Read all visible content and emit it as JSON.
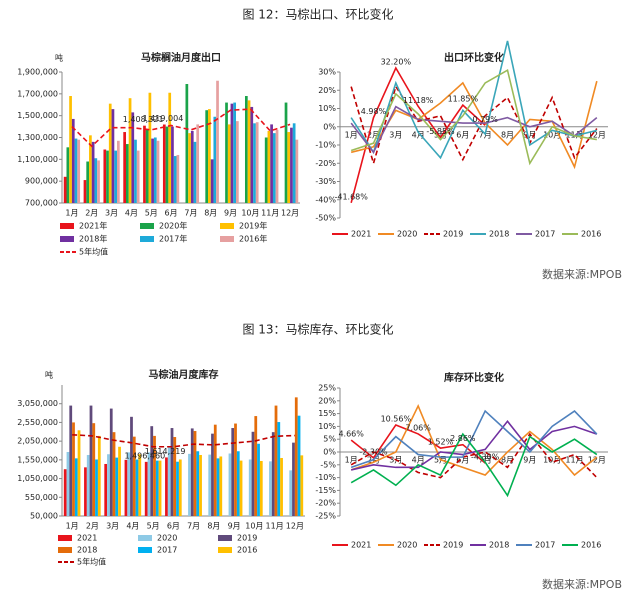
{
  "figures": [
    {
      "caption": "图 12：马棕出口、环比变化",
      "source": "数据来源:MPOB"
    },
    {
      "caption": "图 13：马棕库存、环比变化",
      "source": "数据来源:MPOB"
    }
  ],
  "chart_data": [
    {
      "type": "bar",
      "title": "马棕榈油月度出口",
      "unit": "吨",
      "categories": [
        "1月",
        "2月",
        "3月",
        "4月",
        "5月",
        "6月",
        "7月",
        "8月",
        "9月",
        "10月",
        "11月",
        "12月"
      ],
      "ylim": [
        700000,
        1900000
      ],
      "yticks": [
        {
          "value": 700000,
          "label": "700,000"
        },
        {
          "value": 900000,
          "label": "900,000"
        },
        {
          "value": 1100000,
          "label": "1,100,000"
        },
        {
          "value": 1300000,
          "label": "1,300,000"
        },
        {
          "value": 1500000,
          "label": "1,500,000"
        },
        {
          "value": 1700000,
          "label": "1,700,000"
        },
        {
          "value": 1900000,
          "label": "1,900,000"
        }
      ],
      "series": [
        {
          "name": "2021年",
          "color": "#e8141c",
          "values": [
            940000,
            910000,
            1190000,
            1350000,
            1408321,
            1419004,
            null,
            null,
            null,
            null,
            null,
            null
          ],
          "value_labels": [
            null,
            null,
            null,
            null,
            "1,408,321",
            "1,419,004",
            null,
            null,
            null,
            null,
            null,
            null
          ]
        },
        {
          "name": "2020年",
          "color": "#1aa34a",
          "values": [
            1210000,
            1080000,
            1180000,
            1240000,
            1370000,
            1400000,
            1790000,
            1550000,
            1620000,
            1680000,
            1300000,
            1620000
          ]
        },
        {
          "name": "2019年",
          "color": "#ffc000",
          "values": [
            1680000,
            1320000,
            1610000,
            1660000,
            1710000,
            1710000,
            1340000,
            1560000,
            1420000,
            1640000,
            1360000,
            1350000
          ]
        },
        {
          "name": "2018年",
          "color": "#7030a0",
          "values": [
            1470000,
            1260000,
            1560000,
            1530000,
            1290000,
            1400000,
            1360000,
            1100000,
            1610000,
            1580000,
            1420000,
            1390000
          ]
        },
        {
          "name": "2017年",
          "color": "#1eaad9",
          "values": [
            1290000,
            1110000,
            1180000,
            1280000,
            1300000,
            1130000,
            1260000,
            1490000,
            1620000,
            1430000,
            1340000,
            1430000
          ]
        },
        {
          "name": "2016年",
          "color": "#e6a0a0",
          "values": [
            1280000,
            1090000,
            1270000,
            1180000,
            1270000,
            1140000,
            1420000,
            1820000,
            1450000,
            1440000,
            1370000,
            1280000
          ]
        },
        {
          "name": "5年均值",
          "color": "#e8141c",
          "type": "line",
          "dashed": true,
          "values": [
            1400000,
            1220000,
            1390000,
            1390000,
            1370000,
            1410000,
            1370000,
            1430000,
            1550000,
            1560000,
            1360000,
            1420000
          ]
        }
      ]
    },
    {
      "type": "line",
      "title": "出口环比变化",
      "categories": [
        "1月",
        "2月",
        "3月",
        "4月",
        "5月",
        "6月",
        "7月",
        "8月",
        "9月",
        "10月",
        "11月",
        "12月"
      ],
      "ylim": [
        -50,
        30
      ],
      "yticks": [
        {
          "value": -50,
          "label": "-50%"
        },
        {
          "value": -40,
          "label": "-40%"
        },
        {
          "value": -30,
          "label": "-30%"
        },
        {
          "value": -20,
          "label": "-20%"
        },
        {
          "value": -10,
          "label": "-10%"
        },
        {
          "value": 0,
          "label": "0%"
        },
        {
          "value": 10,
          "label": "10%"
        },
        {
          "value": 20,
          "label": "20%"
        },
        {
          "value": 30,
          "label": "30%"
        }
      ],
      "series": [
        {
          "name": "2021",
          "color": "#e8141c",
          "values": [
            -41.68,
            4.98,
            32.2,
            11.18,
            -5.85,
            11.85,
            0.79,
            null,
            null,
            null,
            null,
            null
          ],
          "value_labels": [
            "-41.68%",
            "4.98%",
            "32.20%",
            "11.18%",
            "-5.85%",
            "11.85%",
            "0.79%",
            null,
            null,
            null,
            null,
            null
          ]
        },
        {
          "name": "2020",
          "color": "#f08a24",
          "values": [
            -14,
            -11,
            9,
            4,
            13,
            24,
            2,
            -10,
            4,
            3,
            -22,
            25
          ]
        },
        {
          "name": "2019",
          "color": "#c00000",
          "dashed": true,
          "values": [
            22,
            -20,
            22,
            3,
            6,
            -18,
            6,
            16,
            -9,
            16,
            -17,
            -1
          ]
        },
        {
          "name": "2018",
          "color": "#3aa6b9",
          "values": [
            5,
            -14,
            24,
            -3,
            -17,
            9,
            -4,
            47,
            -10,
            -2,
            -5,
            -2
          ]
        },
        {
          "name": "2017",
          "color": "#7f5aa2",
          "values": [
            2,
            -14,
            11,
            4,
            3,
            2,
            2,
            5,
            0,
            3,
            -5,
            5
          ]
        },
        {
          "name": "2016",
          "color": "#9bbb59",
          "values": [
            -13,
            -9,
            18,
            7,
            -7,
            6,
            24,
            31,
            -20,
            0,
            -5,
            -7
          ]
        }
      ]
    },
    {
      "type": "bar",
      "title": "马棕油月度库存",
      "unit": "吨",
      "categories": [
        "1月",
        "2月",
        "3月",
        "4月",
        "5月",
        "6月",
        "7月",
        "8月",
        "9月",
        "10月",
        "11月",
        "12月"
      ],
      "ylim": [
        50000,
        3550000
      ],
      "yticks": [
        {
          "value": 50000,
          "label": "50,000"
        },
        {
          "value": 550000,
          "label": "550,000"
        },
        {
          "value": 1050000,
          "label": "1,050,000"
        },
        {
          "value": 1550000,
          "label": "1,550,000"
        },
        {
          "value": 2050000,
          "label": "2,050,000"
        },
        {
          "value": 2550000,
          "label": "2,550,000"
        },
        {
          "value": 3050000,
          "label": "3,050,000"
        }
      ],
      "series": [
        {
          "name": "2021",
          "color": "#e8141c",
          "values": [
            1300000,
            1350000,
            1440000,
            1550000,
            1496460,
            1614219,
            null,
            null,
            null,
            null,
            null,
            null
          ],
          "value_labels": [
            null,
            null,
            null,
            null,
            "1,496,460",
            "1,614,219",
            null,
            null,
            null,
            null,
            null,
            null
          ]
        },
        {
          "name": "2020",
          "color": "#8ecae6",
          "values": [
            1760000,
            1680000,
            1700000,
            1750000,
            1750000,
            1900000,
            1710000,
            1690000,
            1720000,
            1560000,
            1510000,
            1270000
          ]
        },
        {
          "name": "2019",
          "color": "#604a7b",
          "values": [
            3000000,
            3000000,
            2920000,
            2700000,
            2450000,
            2400000,
            2390000,
            2250000,
            2400000,
            2300000,
            2290000,
            2010000
          ]
        },
        {
          "name": "2018",
          "color": "#e46c0a",
          "values": [
            2550000,
            2530000,
            2290000,
            2170000,
            2190000,
            2160000,
            2320000,
            2490000,
            2520000,
            2720000,
            3000000,
            3220000
          ]
        },
        {
          "name": "2017",
          "color": "#00b0f0",
          "values": [
            1590000,
            1560000,
            1610000,
            1560000,
            1530000,
            1500000,
            1780000,
            1590000,
            1780000,
            1980000,
            2560000,
            2730000
          ]
        },
        {
          "name": "2016",
          "color": "#ffc000",
          "values": [
            2340000,
            2190000,
            1900000,
            1700000,
            1530000,
            1560000,
            1680000,
            1640000,
            1530000,
            1520000,
            1600000,
            1670000
          ]
        },
        {
          "name": "5年均值",
          "color": "#c00000",
          "type": "line",
          "dashed": true,
          "values": [
            2220000,
            2190000,
            2080000,
            2000000,
            1900000,
            1900000,
            1970000,
            1950000,
            2000000,
            2050000,
            2180000,
            2200000
          ]
        }
      ]
    },
    {
      "type": "line",
      "title": "库存环比变化",
      "categories": [
        "1月",
        "2月",
        "3月",
        "4月",
        "5月",
        "6月",
        "7月",
        "8月",
        "9月",
        "10月",
        "11月",
        "12月"
      ],
      "ylim": [
        -25,
        25
      ],
      "yticks": [
        {
          "value": -25,
          "label": "-25%"
        },
        {
          "value": -20,
          "label": "-20%"
        },
        {
          "value": -15,
          "label": "-15%"
        },
        {
          "value": -10,
          "label": "-10%"
        },
        {
          "value": -5,
          "label": "-5%"
        },
        {
          "value": 0,
          "label": "0%"
        },
        {
          "value": 5,
          "label": "5%"
        },
        {
          "value": 10,
          "label": "10%"
        },
        {
          "value": 15,
          "label": "15%"
        },
        {
          "value": 20,
          "label": "20%"
        },
        {
          "value": 25,
          "label": "25%"
        }
      ],
      "series": [
        {
          "name": "2021",
          "color": "#e8141c",
          "values": [
            4.66,
            -2.3,
            10.56,
            7.06,
            1.52,
            2.86,
            -4.3,
            null,
            null,
            null,
            null,
            null
          ],
          "value_labels": [
            "4.66%",
            "-2.30%",
            "10.56%",
            "7.06%",
            "1.52%",
            "2.86%",
            "-4.30%",
            null,
            null,
            null,
            null,
            null
          ]
        },
        {
          "name": "2020",
          "color": "#f08a24",
          "values": [
            -7,
            -4,
            0,
            18,
            -3,
            -6,
            -9,
            0,
            8,
            1,
            -9,
            -2
          ]
        },
        {
          "name": "2019",
          "color": "#c00000",
          "dashed": true,
          "values": [
            -5,
            0,
            -3,
            -8,
            -10,
            -2,
            0,
            -6,
            7,
            -4,
            -1,
            -10
          ]
        },
        {
          "name": "2018",
          "color": "#7030a0",
          "values": [
            -7,
            -5,
            -6,
            -6,
            0,
            -1,
            1,
            12,
            1,
            8,
            10,
            7
          ]
        },
        {
          "name": "2017",
          "color": "#4f81bd",
          "values": [
            -6,
            -3,
            6,
            -1,
            -2,
            -2,
            16,
            8,
            0,
            10,
            16,
            7
          ]
        },
        {
          "name": "2016",
          "color": "#00b050",
          "values": [
            -12,
            -7,
            -13,
            -5,
            -9,
            7,
            -4,
            -17,
            6,
            0,
            5,
            -1
          ]
        }
      ]
    }
  ]
}
